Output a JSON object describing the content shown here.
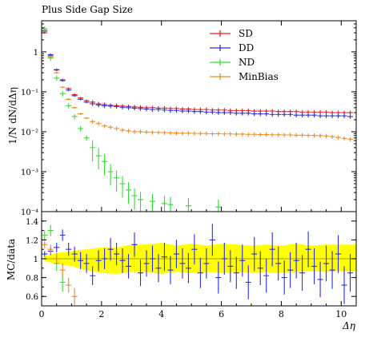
{
  "chart_data": {
    "type": "scatter",
    "title": "Plus Side Gap Size",
    "xlabel": "Δη",
    "ylabel": "1/N dN/dΔη",
    "ratio_ylabel": "MC/data",
    "xlim": [
      0,
      10.5
    ],
    "ylim": [
      0.0001,
      6
    ],
    "yscale": "log",
    "ratio_ylim": [
      0.5,
      1.5
    ],
    "x_ticks": [
      "0",
      "2",
      "4",
      "6",
      "8",
      "10"
    ],
    "y_ticks": [
      "10⁻⁴",
      "10⁻³",
      "10⁻²",
      "10⁻¹",
      "1"
    ],
    "ratio_ticks": [
      "0.6",
      "0.8",
      "1",
      "1.2",
      "1.4"
    ],
    "legend_position": "top-right",
    "colors": {
      "SD": "#e41a1c",
      "DD": "#2b2be6",
      "ND": "#33dd33",
      "MinBias": "#ee8a1e",
      "band": "#ffff00"
    },
    "series": [
      {
        "name": "SD",
        "x": [
          0.1,
          0.3,
          0.5,
          0.7,
          0.9,
          1.1,
          1.3,
          1.5,
          1.7,
          1.9,
          2.1,
          2.3,
          2.5,
          2.7,
          2.9,
          3.1,
          3.3,
          3.5,
          3.7,
          3.9,
          4.1,
          4.3,
          4.5,
          4.7,
          4.9,
          5.1,
          5.3,
          5.5,
          5.7,
          5.9,
          6.1,
          6.3,
          6.5,
          6.7,
          6.9,
          7.1,
          7.3,
          7.5,
          7.7,
          7.9,
          8.1,
          8.3,
          8.5,
          8.7,
          8.9,
          9.1,
          9.3,
          9.5,
          9.7,
          9.9,
          10.1,
          10.3
        ],
        "y": [
          3.0,
          0.8,
          0.35,
          0.2,
          0.12,
          0.085,
          0.07,
          0.06,
          0.055,
          0.05,
          0.048,
          0.046,
          0.045,
          0.044,
          0.043,
          0.042,
          0.041,
          0.04,
          0.04,
          0.039,
          0.039,
          0.038,
          0.038,
          0.037,
          0.037,
          0.036,
          0.036,
          0.036,
          0.035,
          0.035,
          0.035,
          0.034,
          0.034,
          0.034,
          0.034,
          0.033,
          0.033,
          0.033,
          0.033,
          0.032,
          0.032,
          0.032,
          0.032,
          0.031,
          0.031,
          0.031,
          0.031,
          0.031,
          0.03,
          0.03,
          0.03,
          0.03
        ]
      },
      {
        "name": "DD",
        "x": [
          0.1,
          0.3,
          0.5,
          0.7,
          0.9,
          1.1,
          1.3,
          1.5,
          1.7,
          1.9,
          2.1,
          2.3,
          2.5,
          2.7,
          2.9,
          3.1,
          3.3,
          3.5,
          3.7,
          3.9,
          4.1,
          4.3,
          4.5,
          4.7,
          4.9,
          5.1,
          5.3,
          5.5,
          5.7,
          5.9,
          6.1,
          6.3,
          6.5,
          6.7,
          6.9,
          7.1,
          7.3,
          7.5,
          7.7,
          7.9,
          8.1,
          8.3,
          8.5,
          8.7,
          8.9,
          9.1,
          9.3,
          9.5,
          9.7,
          9.9,
          10.1,
          10.3
        ],
        "y": [
          3.3,
          0.85,
          0.36,
          0.19,
          0.11,
          0.08,
          0.065,
          0.055,
          0.05,
          0.047,
          0.045,
          0.044,
          0.043,
          0.041,
          0.04,
          0.039,
          0.038,
          0.037,
          0.036,
          0.036,
          0.035,
          0.034,
          0.034,
          0.033,
          0.033,
          0.032,
          0.032,
          0.031,
          0.031,
          0.03,
          0.03,
          0.03,
          0.029,
          0.029,
          0.029,
          0.028,
          0.028,
          0.028,
          0.027,
          0.027,
          0.027,
          0.027,
          0.026,
          0.026,
          0.026,
          0.026,
          0.025,
          0.025,
          0.025,
          0.025,
          0.025,
          0.024
        ]
      },
      {
        "name": "ND",
        "x": [
          0.1,
          0.3,
          0.5,
          0.7,
          0.9,
          1.1,
          1.3,
          1.5,
          1.7,
          1.9,
          2.1,
          2.3,
          2.5,
          2.7,
          2.9,
          3.1,
          3.3,
          3.7,
          4.1,
          4.3,
          4.9,
          5.9
        ],
        "y": [
          3.8,
          0.7,
          0.22,
          0.09,
          0.045,
          0.024,
          0.012,
          0.007,
          0.004,
          0.0025,
          0.0018,
          0.001,
          0.0007,
          0.0005,
          0.00035,
          0.00025,
          0.0002,
          0.00018,
          0.00016,
          0.00015,
          0.00014,
          0.00013
        ]
      },
      {
        "name": "MinBias",
        "x": [
          0.1,
          0.3,
          0.5,
          0.7,
          0.9,
          1.1,
          1.3,
          1.5,
          1.7,
          1.9,
          2.1,
          2.3,
          2.5,
          2.7,
          2.9,
          3.1,
          3.3,
          3.5,
          3.7,
          3.9,
          4.1,
          4.3,
          4.5,
          4.7,
          4.9,
          5.1,
          5.3,
          5.5,
          5.7,
          5.9,
          6.1,
          6.3,
          6.5,
          6.7,
          6.9,
          7.1,
          7.3,
          7.5,
          7.7,
          7.9,
          8.1,
          8.3,
          8.5,
          8.7,
          8.9,
          9.1,
          9.3,
          9.5,
          9.7,
          9.9,
          10.1,
          10.3
        ],
        "y": [
          3.5,
          0.75,
          0.3,
          0.13,
          0.065,
          0.04,
          0.028,
          0.022,
          0.018,
          0.016,
          0.014,
          0.013,
          0.012,
          0.011,
          0.0105,
          0.01,
          0.01,
          0.0098,
          0.0097,
          0.0096,
          0.0095,
          0.0094,
          0.0093,
          0.0092,
          0.0092,
          0.0091,
          0.009,
          0.009,
          0.0089,
          0.0089,
          0.0088,
          0.0088,
          0.0087,
          0.0087,
          0.0086,
          0.0086,
          0.0085,
          0.0085,
          0.0084,
          0.0084,
          0.0083,
          0.0083,
          0.0082,
          0.0082,
          0.0081,
          0.0081,
          0.008,
          0.0078,
          0.0075,
          0.0072,
          0.0068,
          0.0065
        ]
      }
    ],
    "ratio_band": {
      "x": [
        0.1,
        0.5,
        1.0,
        1.5,
        2.0,
        2.5,
        3.0,
        3.5,
        4.0,
        4.5,
        5.0,
        5.5,
        6.0,
        6.5,
        7.0,
        7.5,
        8.0,
        8.5,
        9.0,
        9.5,
        10.0,
        10.5
      ],
      "lo": [
        0.97,
        0.95,
        0.92,
        0.88,
        0.85,
        0.84,
        0.86,
        0.86,
        0.84,
        0.86,
        0.85,
        0.86,
        0.85,
        0.86,
        0.85,
        0.86,
        0.85,
        0.86,
        0.87,
        0.86,
        0.87,
        0.87
      ],
      "hi": [
        1.03,
        1.06,
        1.08,
        1.1,
        1.12,
        1.12,
        1.15,
        1.15,
        1.17,
        1.14,
        1.16,
        1.14,
        1.16,
        1.15,
        1.14,
        1.15,
        1.14,
        1.16,
        1.14,
        1.15,
        1.15,
        1.15
      ]
    },
    "ratio_series": [
      {
        "name": "DD",
        "x": [
          0.1,
          0.3,
          0.5,
          0.7,
          0.9,
          1.1,
          1.3,
          1.5,
          1.7,
          1.9,
          2.1,
          2.3,
          2.5,
          2.7,
          2.9,
          3.1,
          3.3,
          3.5,
          3.7,
          3.9,
          4.1,
          4.3,
          4.5,
          4.7,
          4.9,
          5.1,
          5.3,
          5.5,
          5.7,
          5.9,
          6.1,
          6.3,
          6.5,
          6.7,
          6.9,
          7.1,
          7.3,
          7.5,
          7.7,
          7.9,
          8.1,
          8.3,
          8.5,
          8.7,
          8.9,
          9.1,
          9.3,
          9.5,
          9.7,
          9.9,
          10.1,
          10.3
        ],
        "y": [
          1.05,
          1.08,
          1.12,
          1.25,
          1.1,
          1.05,
          0.98,
          0.95,
          0.82,
          0.98,
          1.0,
          1.1,
          1.05,
          0.98,
          0.92,
          1.15,
          0.85,
          0.95,
          1.0,
          0.9,
          1.02,
          0.88,
          1.05,
          0.95,
          0.9,
          1.1,
          0.85,
          0.95,
          1.2,
          0.8,
          1.0,
          0.92,
          0.85,
          0.98,
          0.75,
          1.05,
          0.9,
          0.82,
          1.1,
          0.95,
          0.8,
          0.88,
          0.98,
          0.85,
          1.1,
          0.92,
          0.78,
          0.95,
          0.88,
          1.05,
          0.72,
          0.85
        ],
        "err": [
          0.03,
          0.04,
          0.05,
          0.06,
          0.07,
          0.08,
          0.09,
          0.1,
          0.1,
          0.11,
          0.11,
          0.12,
          0.12,
          0.13,
          0.13,
          0.13,
          0.14,
          0.14,
          0.14,
          0.15,
          0.15,
          0.15,
          0.15,
          0.16,
          0.16,
          0.16,
          0.16,
          0.16,
          0.17,
          0.17,
          0.17,
          0.17,
          0.17,
          0.17,
          0.18,
          0.18,
          0.18,
          0.18,
          0.18,
          0.18,
          0.18,
          0.19,
          0.19,
          0.19,
          0.19,
          0.19,
          0.19,
          0.19,
          0.2,
          0.2,
          0.2,
          0.2
        ]
      },
      {
        "name": "ND",
        "x": [
          0.1,
          0.3,
          0.5,
          0.7
        ],
        "y": [
          1.25,
          1.3,
          0.95,
          0.75
        ],
        "err": [
          0.05,
          0.06,
          0.08,
          0.1
        ]
      },
      {
        "name": "MinBias",
        "x": [
          0.1,
          0.3,
          0.5,
          0.7,
          0.9,
          1.1
        ],
        "y": [
          1.15,
          1.1,
          1.0,
          0.88,
          0.72,
          0.6
        ],
        "err": [
          0.04,
          0.05,
          0.06,
          0.07,
          0.08,
          0.09
        ]
      }
    ]
  }
}
